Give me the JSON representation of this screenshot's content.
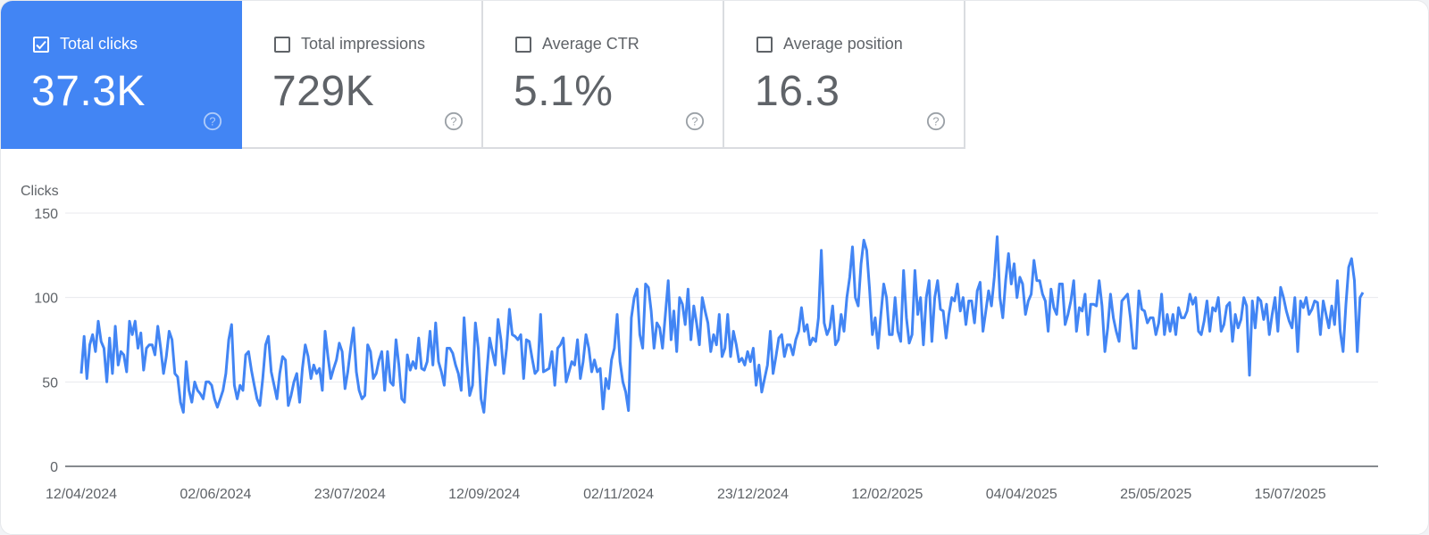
{
  "metrics": [
    {
      "label": "Total clicks",
      "value": "37.3K",
      "selected": true
    },
    {
      "label": "Total impressions",
      "value": "729K",
      "selected": false
    },
    {
      "label": "Average CTR",
      "value": "5.1%",
      "selected": false
    },
    {
      "label": "Average position",
      "value": "16.3",
      "selected": false
    }
  ],
  "colors": {
    "accent": "#4285f4",
    "line": "#4285f4",
    "grid": "#e8eaed",
    "axis": "#5f6368"
  },
  "icons": {
    "checkbox": "checkbox-icon",
    "help": "help-circle-icon"
  },
  "chart_data": {
    "type": "line",
    "ylabel": "Clicks",
    "ylim": [
      0,
      150
    ],
    "yticks": [
      0,
      50,
      100,
      150
    ],
    "x_start": "2024-04-12",
    "x_end": "2025-08-20",
    "xticks": [
      "12/04/2024",
      "02/06/2024",
      "23/07/2024",
      "12/09/2024",
      "02/11/2024",
      "23/12/2024",
      "12/02/2025",
      "04/04/2025",
      "25/05/2025",
      "15/07/2025"
    ],
    "grid": true,
    "series": [
      {
        "values": [
          55,
          77,
          52,
          72,
          78,
          68,
          86,
          74,
          70,
          50,
          76,
          55,
          83,
          60,
          68,
          66,
          56,
          86,
          78,
          86,
          70,
          79,
          57,
          70,
          72,
          72,
          66,
          83,
          70,
          55,
          65,
          80,
          75,
          55,
          53,
          38,
          32,
          62,
          45,
          38,
          50,
          45,
          43,
          40,
          50,
          50,
          48,
          40,
          35,
          40,
          45,
          55,
          75,
          84,
          48,
          40,
          48,
          45,
          66,
          68,
          57,
          48,
          40,
          36,
          52,
          72,
          77,
          56,
          48,
          40,
          55,
          65,
          63,
          36,
          42,
          50,
          55,
          38,
          58,
          72,
          65,
          52,
          60,
          55,
          58,
          45,
          80,
          65,
          52,
          58,
          63,
          73,
          68,
          46,
          56,
          70,
          82,
          56,
          45,
          40,
          42,
          72,
          68,
          52,
          55,
          63,
          68,
          45,
          68,
          50,
          48,
          75,
          60,
          40,
          38,
          66,
          57,
          62,
          58,
          76,
          58,
          57,
          62,
          80,
          60,
          85,
          62,
          56,
          48,
          70,
          70,
          67,
          60,
          55,
          45,
          88,
          62,
          42,
          48,
          85,
          70,
          40,
          32,
          55,
          76,
          68,
          60,
          87,
          75,
          55,
          70,
          93,
          78,
          77,
          75,
          78,
          52,
          75,
          74,
          64,
          55,
          57,
          90,
          56,
          57,
          58,
          68,
          48,
          70,
          72,
          76,
          50,
          56,
          62,
          60,
          75,
          52,
          62,
          78,
          70,
          56,
          63,
          56,
          58,
          34,
          52,
          46,
          63,
          70,
          90,
          62,
          50,
          44,
          33,
          88,
          100,
          105,
          78,
          70,
          108,
          106,
          92,
          70,
          85,
          82,
          70,
          90,
          110,
          75,
          92,
          68,
          100,
          96,
          84,
          105,
          75,
          95,
          85,
          72,
          100,
          92,
          85,
          68,
          78,
          72,
          90,
          65,
          70,
          90,
          65,
          80,
          72,
          62,
          64,
          60,
          68,
          62,
          70,
          48,
          60,
          44,
          52,
          60,
          80,
          55,
          65,
          76,
          78,
          65,
          72,
          72,
          66,
          75,
          80,
          94,
          80,
          84,
          72,
          76,
          74,
          88,
          128,
          85,
          78,
          82,
          95,
          72,
          75,
          90,
          80,
          100,
          112,
          130,
          100,
          95,
          120,
          134,
          128,
          105,
          78,
          88,
          70,
          90,
          108,
          100,
          78,
          78,
          100,
          80,
          74,
          116,
          88,
          73,
          78,
          116,
          90,
          100,
          72,
          100,
          110,
          74,
          100,
          110,
          93,
          92,
          76,
          90,
          100,
          98,
          108,
          92,
          100,
          84,
          98,
          98,
          85,
          104,
          109,
          80,
          92,
          104,
          95,
          112,
          136,
          100,
          88,
          110,
          126,
          108,
          120,
          100,
          112,
          108,
          90,
          98,
          102,
          122,
          110,
          110,
          102,
          98,
          80,
          105,
          94,
          90,
          108,
          108,
          84,
          90,
          98,
          110,
          80,
          94,
          92,
          102,
          78,
          96,
          96,
          95,
          110,
          95,
          68,
          82,
          102,
          88,
          80,
          74,
          98,
          100,
          102,
          88,
          70,
          70,
          104,
          93,
          92,
          85,
          88,
          88,
          78,
          85,
          102,
          78,
          90,
          80,
          90,
          78,
          94,
          88,
          88,
          92,
          102,
          96,
          100,
          80,
          78,
          86,
          98,
          80,
          94,
          92,
          100,
          80,
          84,
          95,
          97,
          74,
          90,
          82,
          87,
          100,
          95,
          54,
          98,
          82,
          100,
          98,
          87,
          96,
          78,
          90,
          100,
          80,
          106,
          100,
          92,
          86,
          82,
          100,
          68,
          98,
          94,
          100,
          90,
          93,
          98,
          97,
          78,
          98,
          90,
          82,
          95,
          84,
          110,
          80,
          68,
          96,
          118,
          123,
          110,
          68,
          100,
          103
        ]
      }
    ]
  }
}
